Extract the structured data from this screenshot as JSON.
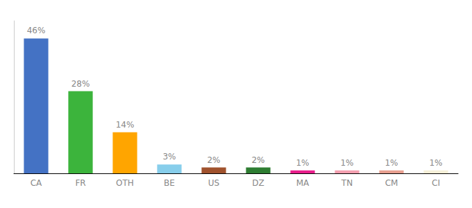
{
  "chart_data": {
    "type": "bar",
    "categories": [
      "CA",
      "FR",
      "OTH",
      "BE",
      "US",
      "DZ",
      "MA",
      "TN",
      "CM",
      "CI"
    ],
    "values": [
      46,
      28,
      14,
      3,
      2,
      2,
      1,
      1,
      1,
      1
    ],
    "value_labels": [
      "46%",
      "28%",
      "14%",
      "3%",
      "2%",
      "2%",
      "1%",
      "1%",
      "1%",
      "1%"
    ],
    "data_labels": true,
    "colors": [
      "#4472c4",
      "#3cb43c",
      "#ffa500",
      "#87ceeb",
      "#a0522d",
      "#2e7d32",
      "#e91e8c",
      "#f4a0b0",
      "#e8a090",
      "#f5f0d8"
    ],
    "ylim": [
      0,
      52
    ],
    "grid": false,
    "tick_labels": "x"
  }
}
